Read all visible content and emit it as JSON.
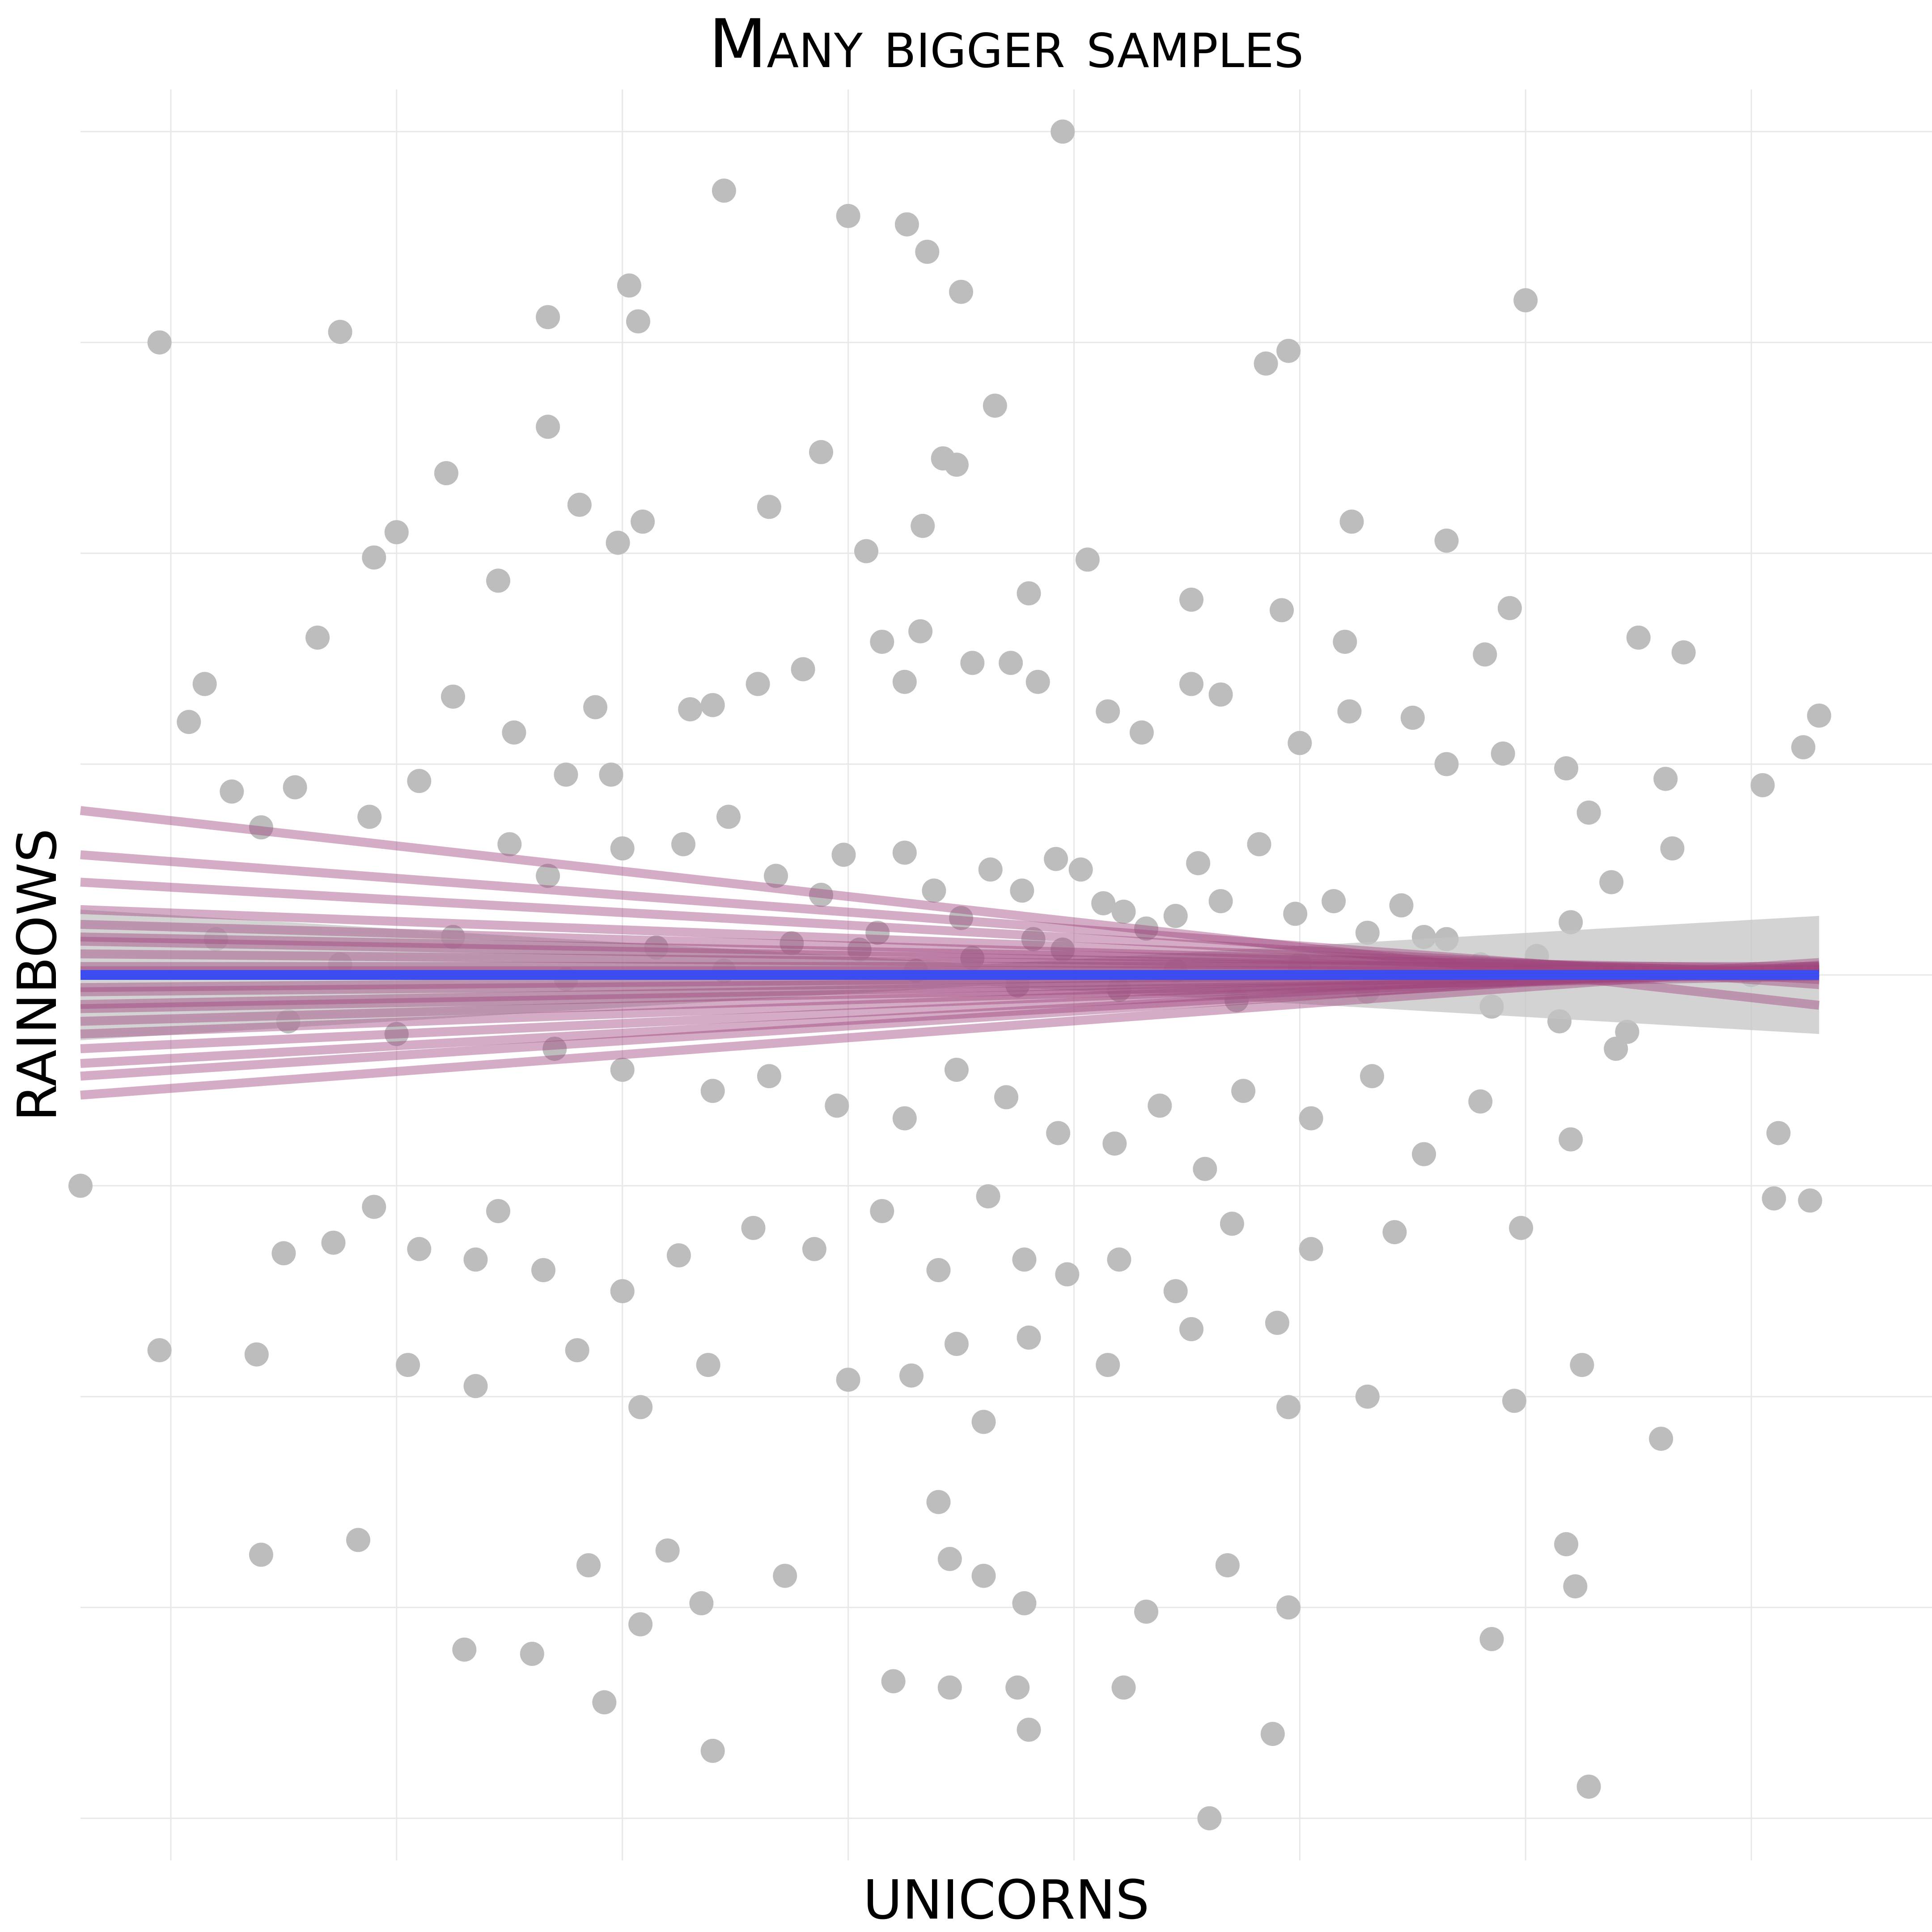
{
  "chart_data": {
    "type": "scatter",
    "title": "Many bigger samples",
    "xlabel": "Unicorns",
    "ylabel": "Rainbows",
    "grid": true,
    "xlim": [
      -4.0,
      4.2
    ],
    "ylim": [
      -4.2,
      4.2
    ],
    "x_gridlines": [
      -3.6,
      -2.6,
      -1.6,
      -0.6,
      0.4,
      1.4,
      2.4,
      3.4
    ],
    "y_gridlines": [
      -4.0,
      -3.0,
      -2.0,
      -1.0,
      0.0,
      1.0,
      2.0,
      3.0,
      4.0
    ],
    "colors": {
      "points": "#bdbdbd",
      "ribbon": "#c4c4c4",
      "sample_lines": "#a0487f",
      "fit_line": "#3b4cf0",
      "grid": "#e8e8e8"
    },
    "points": [
      [
        -2.85,
        3.05
      ],
      [
        -2.15,
        1.87
      ],
      [
        -2.38,
        2.38
      ],
      [
        -1.93,
        3.12
      ],
      [
        -1.93,
        2.6
      ],
      [
        -1.57,
        3.27
      ],
      [
        -1.53,
        3.1
      ],
      [
        -1.15,
        3.72
      ],
      [
        -0.6,
        3.6
      ],
      [
        -0.25,
        3.43
      ],
      [
        -0.1,
        3.24
      ],
      [
        -0.12,
        2.42
      ],
      [
        -0.18,
        2.45
      ],
      [
        0.35,
        4.0
      ],
      [
        0.05,
        2.7
      ],
      [
        -0.34,
        3.56
      ],
      [
        1.25,
        2.9
      ],
      [
        1.35,
        2.96
      ],
      [
        1.63,
        2.15
      ],
      [
        2.4,
        3.2
      ],
      [
        -3.65,
        3.0
      ],
      [
        -2.95,
        1.6
      ],
      [
        -3.52,
        1.2
      ],
      [
        -2.7,
        1.98
      ],
      [
        -2.6,
        2.1
      ],
      [
        -1.79,
        2.23
      ],
      [
        -1.62,
        2.05
      ],
      [
        -1.51,
        2.15
      ],
      [
        -0.95,
        2.22
      ],
      [
        -0.72,
        2.48
      ],
      [
        -0.52,
        2.01
      ],
      [
        -0.27,
        2.13
      ],
      [
        0.2,
        1.81
      ],
      [
        0.46,
        1.97
      ],
      [
        0.92,
        1.78
      ],
      [
        1.6,
        1.58
      ],
      [
        2.22,
        1.52
      ],
      [
        2.05,
        2.06
      ],
      [
        2.33,
        1.74
      ],
      [
        1.32,
        1.73
      ],
      [
        -3.45,
        1.38
      ],
      [
        -3.33,
        0.87
      ],
      [
        -3.2,
        0.7
      ],
      [
        -3.05,
        0.89
      ],
      [
        -2.72,
        0.75
      ],
      [
        -2.5,
        0.92
      ],
      [
        -2.35,
        1.32
      ],
      [
        -2.08,
        1.15
      ],
      [
        -1.72,
        1.27
      ],
      [
        -1.65,
        0.95
      ],
      [
        -1.3,
        1.26
      ],
      [
        -1.2,
        1.28
      ],
      [
        -1.0,
        1.38
      ],
      [
        -0.8,
        1.45
      ],
      [
        -0.45,
        1.58
      ],
      [
        -0.35,
        1.39
      ],
      [
        -0.28,
        1.63
      ],
      [
        -0.05,
        1.48
      ],
      [
        0.12,
        1.48
      ],
      [
        0.24,
        1.39
      ],
      [
        0.55,
        1.25
      ],
      [
        0.7,
        1.15
      ],
      [
        0.92,
        1.38
      ],
      [
        1.05,
        1.33
      ],
      [
        1.4,
        1.1
      ],
      [
        1.62,
        1.25
      ],
      [
        1.9,
        1.22
      ],
      [
        2.05,
        1.0
      ],
      [
        2.3,
        1.05
      ],
      [
        2.58,
        0.98
      ],
      [
        3.1,
        1.53
      ],
      [
        2.9,
        1.6
      ],
      [
        3.02,
        0.93
      ],
      [
        2.68,
        0.77
      ],
      [
        3.45,
        0.9
      ],
      [
        3.63,
        1.08
      ],
      [
        3.7,
        1.23
      ],
      [
        -2.1,
        0.62
      ],
      [
        -1.93,
        0.47
      ],
      [
        -1.85,
        0.95
      ],
      [
        -1.6,
        0.6
      ],
      [
        -1.33,
        0.62
      ],
      [
        -1.13,
        0.75
      ],
      [
        -0.92,
        0.47
      ],
      [
        -0.72,
        0.38
      ],
      [
        -0.62,
        0.57
      ],
      [
        -0.47,
        0.2
      ],
      [
        -0.35,
        0.58
      ],
      [
        -0.22,
        0.4
      ],
      [
        -0.1,
        0.27
      ],
      [
        0.03,
        0.5
      ],
      [
        0.17,
        0.4
      ],
      [
        0.22,
        0.17
      ],
      [
        0.32,
        0.55
      ],
      [
        0.43,
        0.5
      ],
      [
        0.53,
        0.34
      ],
      [
        0.62,
        0.3
      ],
      [
        0.72,
        0.22
      ],
      [
        0.85,
        0.28
      ],
      [
        0.95,
        0.53
      ],
      [
        1.05,
        0.35
      ],
      [
        1.22,
        0.62
      ],
      [
        1.38,
        0.29
      ],
      [
        1.55,
        0.35
      ],
      [
        1.7,
        0.2
      ],
      [
        1.85,
        0.33
      ],
      [
        2.05,
        0.17
      ],
      [
        2.2,
        0.05
      ],
      [
        2.45,
        0.09
      ],
      [
        2.6,
        0.25
      ],
      [
        2.78,
        0.44
      ],
      [
        3.05,
        0.6
      ],
      [
        -3.4,
        0.17
      ],
      [
        -2.85,
        0.05
      ],
      [
        -2.35,
        0.18
      ],
      [
        -1.85,
        -0.02
      ],
      [
        -1.45,
        0.13
      ],
      [
        -1.15,
        0.02
      ],
      [
        -0.85,
        0.15
      ],
      [
        -0.55,
        0.12
      ],
      [
        -0.3,
        0.02
      ],
      [
        -0.05,
        0.08
      ],
      [
        0.15,
        -0.05
      ],
      [
        0.35,
        0.12
      ],
      [
        0.6,
        -0.07
      ],
      [
        0.85,
        0.02
      ],
      [
        1.12,
        -0.12
      ],
      [
        1.4,
        0.05
      ],
      [
        1.7,
        -0.08
      ],
      [
        1.95,
        0.18
      ],
      [
        2.25,
        -0.15
      ],
      [
        2.55,
        -0.22
      ],
      [
        2.85,
        -0.27
      ],
      [
        3.4,
        0.0
      ],
      [
        -3.08,
        -0.22
      ],
      [
        -2.6,
        -0.28
      ],
      [
        -1.9,
        -0.35
      ],
      [
        -1.6,
        -0.45
      ],
      [
        -1.2,
        -0.55
      ],
      [
        -0.95,
        -0.48
      ],
      [
        -0.65,
        -0.62
      ],
      [
        -0.35,
        -0.68
      ],
      [
        -0.12,
        -0.45
      ],
      [
        0.1,
        -0.58
      ],
      [
        0.33,
        -0.75
      ],
      [
        0.58,
        -0.8
      ],
      [
        0.78,
        -0.62
      ],
      [
        0.98,
        -0.92
      ],
      [
        1.15,
        -0.55
      ],
      [
        1.45,
        -0.68
      ],
      [
        1.72,
        -0.48
      ],
      [
        1.95,
        -0.85
      ],
      [
        2.2,
        -0.6
      ],
      [
        2.6,
        -0.78
      ],
      [
        2.38,
        -1.2
      ],
      [
        1.82,
        -1.22
      ],
      [
        1.45,
        -1.3
      ],
      [
        3.52,
        -0.75
      ],
      [
        3.66,
        -1.07
      ],
      [
        -2.7,
        -1.1
      ],
      [
        -2.5,
        -1.3
      ],
      [
        -2.25,
        -1.35
      ],
      [
        -1.95,
        -1.4
      ],
      [
        -1.6,
        -1.5
      ],
      [
        -1.35,
        -1.33
      ],
      [
        -1.02,
        -1.2
      ],
      [
        -0.75,
        -1.3
      ],
      [
        -0.45,
        -1.12
      ],
      [
        -0.2,
        -1.4
      ],
      [
        0.02,
        -1.05
      ],
      [
        0.18,
        -1.35
      ],
      [
        0.37,
        -1.42
      ],
      [
        0.6,
        -1.35
      ],
      [
        0.85,
        -1.5
      ],
      [
        1.1,
        -1.18
      ],
      [
        1.3,
        -1.65
      ],
      [
        -2.15,
        -1.12
      ],
      [
        -3.1,
        -1.32
      ],
      [
        -2.88,
        -1.27
      ],
      [
        -3.65,
        -1.78
      ],
      [
        -3.22,
        -1.8
      ],
      [
        -2.55,
        -1.85
      ],
      [
        -2.25,
        -1.95
      ],
      [
        -1.8,
        -1.78
      ],
      [
        -1.52,
        -2.05
      ],
      [
        -1.22,
        -1.85
      ],
      [
        -0.6,
        -1.92
      ],
      [
        -0.32,
        -1.9
      ],
      [
        -0.12,
        -1.75
      ],
      [
        0.2,
        -1.72
      ],
      [
        0.55,
        -1.85
      ],
      [
        0.92,
        -1.68
      ],
      [
        1.35,
        -2.05
      ],
      [
        1.7,
        -2.0
      ],
      [
        2.35,
        -2.02
      ],
      [
        2.65,
        -1.85
      ],
      [
        3.0,
        -2.2
      ],
      [
        -2.77,
        -2.68
      ],
      [
        -3.2,
        -2.75
      ],
      [
        -1.75,
        -2.8
      ],
      [
        -1.4,
        -2.73
      ],
      [
        -1.52,
        -3.08
      ],
      [
        -1.25,
        -2.98
      ],
      [
        -0.88,
        -2.85
      ],
      [
        -0.15,
        -3.38
      ],
      [
        0.0,
        -2.12
      ],
      [
        0.0,
        -2.85
      ],
      [
        0.18,
        -2.98
      ],
      [
        0.72,
        -3.02
      ],
      [
        1.08,
        -2.8
      ],
      [
        1.35,
        -3.0
      ],
      [
        2.25,
        -3.15
      ],
      [
        2.58,
        -2.7
      ],
      [
        2.62,
        -2.9
      ],
      [
        -0.15,
        -2.77
      ],
      [
        -0.2,
        -2.5
      ],
      [
        -2.0,
        -3.22
      ],
      [
        -1.68,
        -3.45
      ],
      [
        -2.3,
        -3.2
      ],
      [
        -1.2,
        -3.68
      ],
      [
        -0.4,
        -3.35
      ],
      [
        0.15,
        -3.38
      ],
      [
        0.2,
        -3.58
      ],
      [
        0.62,
        -3.38
      ],
      [
        1.28,
        -3.6
      ],
      [
        2.68,
        -3.85
      ],
      [
        1.0,
        -4.0
      ],
      [
        -4.0,
        -1.0
      ],
      [
        3.5,
        -1.06
      ],
      [
        2.8,
        -0.35
      ]
    ],
    "fit": {
      "intercept": 0.0,
      "slope": 0.0
    },
    "sample_lines": [
      [
        0.3,
        -0.12
      ],
      [
        0.25,
        -0.08
      ],
      [
        0.2,
        -0.06
      ],
      [
        0.15,
        -0.04
      ],
      [
        0.12,
        -0.03
      ],
      [
        0.1,
        -0.02
      ],
      [
        0.08,
        -0.02
      ],
      [
        0.06,
        -0.01
      ],
      [
        0.04,
        0.0
      ],
      [
        0.02,
        0.0
      ],
      [
        -0.02,
        0.01
      ],
      [
        -0.04,
        0.01
      ],
      [
        -0.06,
        0.02
      ],
      [
        -0.08,
        0.02
      ],
      [
        -0.1,
        0.03
      ],
      [
        -0.12,
        0.04
      ],
      [
        -0.15,
        0.05
      ],
      [
        -0.18,
        0.06
      ],
      [
        -0.2,
        0.07
      ],
      [
        -0.25,
        0.08
      ]
    ]
  }
}
